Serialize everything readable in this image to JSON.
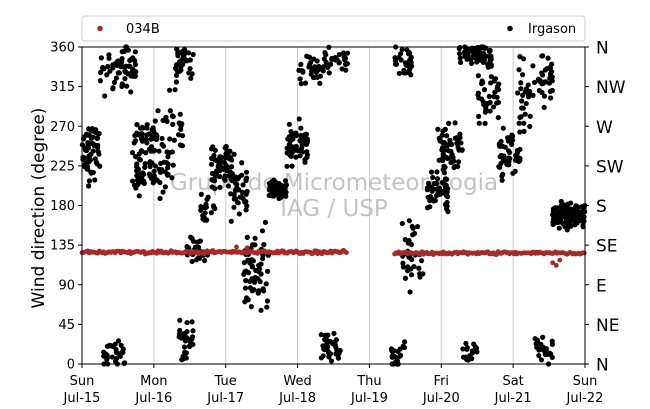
{
  "chart_data": {
    "type": "scatter",
    "title": "",
    "ylabel": "Wind direction (degree)",
    "xlabel": "",
    "ylim": [
      0,
      360
    ],
    "xlim": [
      "2018-07-15",
      "2018-07-22"
    ],
    "grid": "vertical lines at day boundaries",
    "legend_placement": "top, above plot",
    "y_ticks": [
      0,
      45,
      90,
      135,
      180,
      225,
      270,
      315,
      360
    ],
    "x_tick_labels": [
      {
        "day": "Sun",
        "date": "Jul-15"
      },
      {
        "day": "Mon",
        "date": "Jul-16"
      },
      {
        "day": "Tue",
        "date": "Jul-17"
      },
      {
        "day": "Wed",
        "date": "Jul-18"
      },
      {
        "day": "Thu",
        "date": "Jul-19"
      },
      {
        "day": "Fri",
        "date": "Jul-20"
      },
      {
        "day": "Sat",
        "date": "Jul-21"
      },
      {
        "day": "Sun",
        "date": "Jul-22"
      }
    ],
    "compass_labels": [
      {
        "label": "N",
        "deg": 360
      },
      {
        "label": "NW",
        "deg": 315
      },
      {
        "label": "W",
        "deg": 270
      },
      {
        "label": "SW",
        "deg": 225
      },
      {
        "label": "S",
        "deg": 180
      },
      {
        "label": "SE",
        "deg": 135
      },
      {
        "label": "E",
        "deg": 90
      },
      {
        "label": "NE",
        "deg": 45
      },
      {
        "label": "N",
        "deg": 0
      }
    ],
    "watermark": [
      "Grupo de Micrometeorologia",
      "IAG / USP"
    ],
    "series": [
      {
        "name": "034B",
        "color": "#a52a2a",
        "segments": [
          {
            "from": 0.0,
            "to": 3.7,
            "level": 127,
            "jitter": 3
          },
          {
            "from": 4.35,
            "to": 7.0,
            "level": 126,
            "jitter": 3
          }
        ],
        "spikes": [
          {
            "x": 1.7,
            "y": 125
          },
          {
            "x": 2.15,
            "y": 133
          },
          {
            "x": 2.3,
            "y": 132
          },
          {
            "x": 6.55,
            "y": 115
          },
          {
            "x": 6.6,
            "y": 112
          },
          {
            "x": 6.65,
            "y": 118
          }
        ]
      },
      {
        "name": "Irgason",
        "color": "#000000",
        "clusters": [
          {
            "from": 0.0,
            "to": 0.25,
            "center": 240,
            "spread": 25,
            "n": 60
          },
          {
            "from": 0.25,
            "to": 0.5,
            "center": 330,
            "spread": 25,
            "n": 18
          },
          {
            "from": 0.3,
            "to": 0.6,
            "center": 15,
            "spread": 12,
            "n": 30
          },
          {
            "from": 0.45,
            "to": 0.75,
            "center": 335,
            "spread": 22,
            "n": 45
          },
          {
            "from": 0.7,
            "to": 1.0,
            "center": 250,
            "spread": 25,
            "n": 40
          },
          {
            "from": 0.7,
            "to": 1.2,
            "center": 215,
            "spread": 18,
            "n": 55
          },
          {
            "from": 1.0,
            "to": 1.4,
            "center": 260,
            "spread": 35,
            "n": 40
          },
          {
            "from": 1.3,
            "to": 1.55,
            "center": 340,
            "spread": 18,
            "n": 30
          },
          {
            "from": 1.35,
            "to": 1.55,
            "center": 25,
            "spread": 20,
            "n": 30
          },
          {
            "from": 1.45,
            "to": 1.75,
            "center": 130,
            "spread": 14,
            "n": 30
          },
          {
            "from": 1.65,
            "to": 1.85,
            "center": 175,
            "spread": 14,
            "n": 20
          },
          {
            "from": 1.8,
            "to": 2.1,
            "center": 225,
            "spread": 20,
            "n": 60
          },
          {
            "from": 2.05,
            "to": 2.3,
            "center": 200,
            "spread": 30,
            "n": 40
          },
          {
            "from": 2.25,
            "to": 2.6,
            "center": 105,
            "spread": 40,
            "n": 60
          },
          {
            "from": 2.6,
            "to": 2.85,
            "center": 198,
            "spread": 8,
            "n": 50
          },
          {
            "from": 2.85,
            "to": 3.15,
            "center": 250,
            "spread": 20,
            "n": 55
          },
          {
            "from": 3.0,
            "to": 3.35,
            "center": 335,
            "spread": 15,
            "n": 30
          },
          {
            "from": 3.3,
            "to": 3.6,
            "center": 18,
            "spread": 14,
            "n": 35
          },
          {
            "from": 3.35,
            "to": 3.7,
            "center": 345,
            "spread": 12,
            "n": 30
          },
          {
            "from": 4.3,
            "to": 4.5,
            "center": 12,
            "spread": 12,
            "n": 25
          },
          {
            "from": 4.35,
            "to": 4.6,
            "center": 345,
            "spread": 15,
            "n": 35
          },
          {
            "from": 4.45,
            "to": 4.8,
            "center": 130,
            "spread": 35,
            "n": 35
          },
          {
            "from": 4.8,
            "to": 5.1,
            "center": 200,
            "spread": 25,
            "n": 55
          },
          {
            "from": 4.95,
            "to": 5.3,
            "center": 245,
            "spread": 25,
            "n": 50
          },
          {
            "from": 5.25,
            "to": 5.7,
            "center": 350,
            "spread": 12,
            "n": 70
          },
          {
            "from": 5.3,
            "to": 5.5,
            "center": 12,
            "spread": 10,
            "n": 20
          },
          {
            "from": 5.5,
            "to": 5.8,
            "center": 305,
            "spread": 25,
            "n": 40
          },
          {
            "from": 5.8,
            "to": 6.1,
            "center": 235,
            "spread": 25,
            "n": 50
          },
          {
            "from": 6.05,
            "to": 6.3,
            "center": 300,
            "spread": 35,
            "n": 30
          },
          {
            "from": 6.3,
            "to": 6.55,
            "center": 15,
            "spread": 12,
            "n": 25
          },
          {
            "from": 6.35,
            "to": 6.55,
            "center": 330,
            "spread": 25,
            "n": 30
          },
          {
            "from": 6.55,
            "to": 7.0,
            "center": 168,
            "spread": 12,
            "n": 140
          }
        ]
      }
    ]
  }
}
